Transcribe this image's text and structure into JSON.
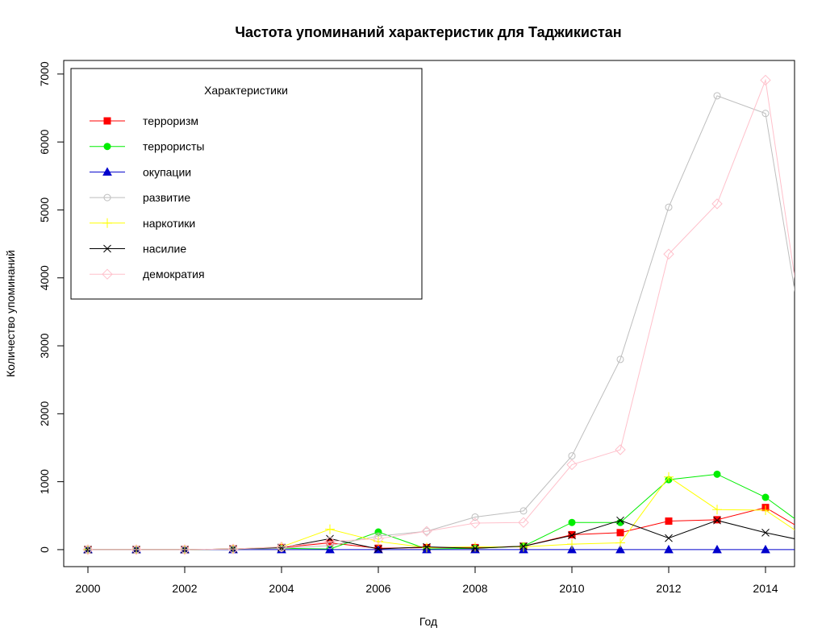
{
  "chart_data": {
    "type": "line",
    "title": "Частота упоминаний характеристик для Таджикистан",
    "xlabel": "Год",
    "ylabel": "Количество упоминаний",
    "xlim": [
      1999.5,
      2014.6
    ],
    "ylim": [
      -250,
      7200
    ],
    "x_ticks": [
      2000,
      2002,
      2004,
      2006,
      2008,
      2010,
      2012,
      2014
    ],
    "y_ticks": [
      0,
      1000,
      2000,
      3000,
      4000,
      5000,
      6000,
      7000
    ],
    "grid": false,
    "legend": {
      "title": "Характеристики",
      "position": "top-left"
    },
    "x": [
      2000,
      2001,
      2002,
      2003,
      2004,
      2005,
      2006,
      2007,
      2008,
      2009,
      2010,
      2011,
      2012,
      2013,
      2014,
      2015
    ],
    "series": [
      {
        "name": "терроризм",
        "color": "#ff0000",
        "marker": "square-filled",
        "values": [
          0,
          0,
          0,
          10,
          30,
          100,
          20,
          30,
          30,
          50,
          220,
          250,
          420,
          440,
          620,
          200
        ]
      },
      {
        "name": "террористы",
        "color": "#00ee00",
        "marker": "circle-filled",
        "values": [
          0,
          0,
          0,
          5,
          20,
          10,
          260,
          10,
          20,
          50,
          400,
          400,
          1030,
          1110,
          770,
          250
        ]
      },
      {
        "name": "окупации",
        "color": "#0000cc",
        "marker": "triangle-filled",
        "values": [
          0,
          0,
          0,
          0,
          0,
          0,
          0,
          0,
          0,
          0,
          0,
          0,
          0,
          0,
          0,
          0
        ]
      },
      {
        "name": "развитие",
        "color": "#bebebe",
        "marker": "circle-open",
        "values": [
          0,
          0,
          0,
          5,
          20,
          60,
          200,
          270,
          480,
          570,
          1380,
          2800,
          5040,
          6680,
          6420,
          2100
        ]
      },
      {
        "name": "наркотики",
        "color": "#ffff00",
        "marker": "plus",
        "values": [
          0,
          0,
          0,
          10,
          40,
          300,
          120,
          30,
          40,
          40,
          80,
          100,
          1070,
          590,
          580,
          100
        ]
      },
      {
        "name": "насилие",
        "color": "#000000",
        "marker": "cross",
        "values": [
          0,
          0,
          0,
          10,
          30,
          160,
          10,
          40,
          20,
          50,
          210,
          430,
          170,
          430,
          250,
          100
        ]
      },
      {
        "name": "демократия",
        "color": "#ffc0cb",
        "marker": "diamond-open",
        "values": [
          0,
          0,
          0,
          10,
          40,
          120,
          160,
          270,
          390,
          400,
          1250,
          1470,
          4350,
          5090,
          6910,
          2100
        ]
      }
    ]
  }
}
